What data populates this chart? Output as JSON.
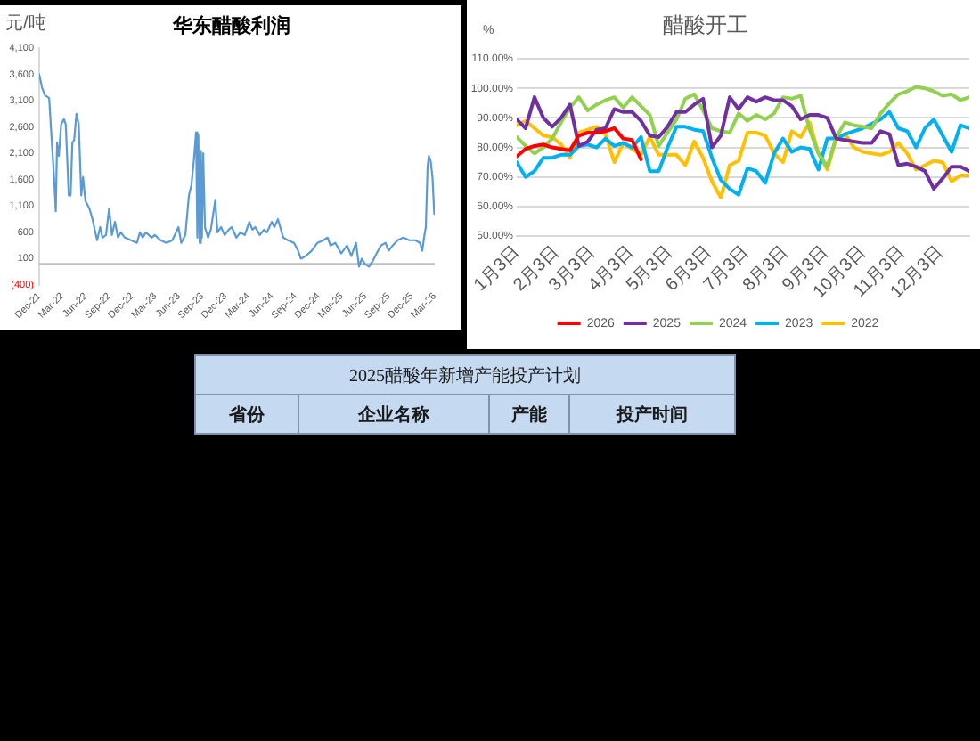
{
  "chart_data": [
    {
      "type": "line",
      "title": "华东醋酸利润",
      "ylabel": "元/吨",
      "color": "#5b9bd5",
      "x": [
        "2021-12-01",
        "2021-12-12",
        "2021-12-24",
        "2022-01-09",
        "2022-01-28",
        "2022-02-04",
        "2022-02-09",
        "2022-02-16",
        "2022-02-25",
        "2022-03-08",
        "2022-03-15",
        "2022-03-27",
        "2022-04-03",
        "2022-04-10",
        "2022-04-17",
        "2022-04-26",
        "2022-05-05",
        "2022-05-15",
        "2022-05-22",
        "2022-05-31",
        "2022-06-16",
        "2022-06-28",
        "2022-07-09",
        "2022-07-16",
        "2022-07-28",
        "2022-08-06",
        "2022-08-20",
        "2022-09-01",
        "2022-09-12",
        "2022-09-24",
        "2022-10-06",
        "2022-10-17",
        "2022-11-02",
        "2022-11-26",
        "2022-12-19",
        "2022-12-31",
        "2023-01-11",
        "2023-01-23",
        "2023-02-15",
        "2023-02-27",
        "2023-03-22",
        "2023-04-14",
        "2023-05-07",
        "2023-05-31",
        "2023-06-11",
        "2023-06-27",
        "2023-07-11",
        "2023-07-21",
        "2023-07-30",
        "2023-08-08",
        "2023-08-13",
        "2023-08-17",
        "2023-08-22",
        "2023-08-27",
        "2023-08-31",
        "2023-09-05",
        "2023-09-12",
        "2023-09-24",
        "2023-10-05",
        "2023-10-22",
        "2023-10-31",
        "2023-11-14",
        "2023-11-28",
        "2023-12-14",
        "2023-12-26",
        "2024-01-13",
        "2024-01-29",
        "2024-02-15",
        "2024-03-04",
        "2024-03-16",
        "2024-03-27",
        "2024-04-14",
        "2024-04-30",
        "2024-05-12",
        "2024-05-31",
        "2024-06-10",
        "2024-06-24",
        "2024-07-03",
        "2024-07-15",
        "2024-08-02",
        "2024-08-26",
        "2024-09-11",
        "2024-09-22",
        "2024-10-11",
        "2024-11-03",
        "2024-11-26",
        "2024-12-19",
        "2025-01-05",
        "2025-01-16",
        "2025-02-04",
        "2025-02-27",
        "2025-03-22",
        "2025-04-08",
        "2025-04-26",
        "2025-05-08",
        "2025-05-19",
        "2025-05-31",
        "2025-06-16",
        "2025-06-30",
        "2025-07-16",
        "2025-08-02",
        "2025-08-20",
        "2025-09-01",
        "2025-09-17",
        "2025-10-06",
        "2025-10-29",
        "2025-11-21",
        "2025-12-15",
        "2026-01-02",
        "2026-01-11",
        "2026-01-18",
        "2026-01-25",
        "2026-02-01",
        "2026-02-06",
        "2026-02-13",
        "2026-02-20",
        "2026-02-27"
      ],
      "values": [
        3600,
        3350,
        3200,
        3150,
        1650,
        1000,
        2300,
        2050,
        2650,
        2750,
        2650,
        1300,
        1300,
        2300,
        2350,
        2850,
        2650,
        1300,
        1650,
        1200,
        1050,
        850,
        600,
        450,
        700,
        500,
        550,
        1050,
        550,
        800,
        500,
        600,
        500,
        450,
        400,
        600,
        500,
        600,
        500,
        550,
        450,
        400,
        450,
        700,
        400,
        550,
        1300,
        1500,
        1950,
        2500,
        500,
        2450,
        400,
        2150,
        500,
        2100,
        700,
        500,
        650,
        1200,
        600,
        700,
        550,
        650,
        700,
        500,
        600,
        550,
        800,
        650,
        700,
        550,
        650,
        600,
        800,
        700,
        850,
        700,
        500,
        450,
        400,
        250,
        100,
        150,
        250,
        400,
        450,
        500,
        350,
        400,
        200,
        350,
        150,
        400,
        -50,
        100,
        0,
        -50,
        50,
        200,
        350,
        400,
        250,
        350,
        450,
        500,
        450,
        450,
        400,
        250,
        500,
        700,
        1850,
        2050,
        1950,
        1650,
        950
      ],
      "xlim": [
        "2021-12",
        "2026-03"
      ],
      "xticks": [
        {
          "value": "2021-12",
          "label": "Dec-21"
        },
        {
          "value": "2022-03",
          "label": "Mar-22"
        },
        {
          "value": "2022-06",
          "label": "Jun-22"
        },
        {
          "value": "2022-09",
          "label": "Sep-22"
        },
        {
          "value": "2022-12",
          "label": "Dec-22"
        },
        {
          "value": "2023-03",
          "label": "Mar-23"
        },
        {
          "value": "2023-06",
          "label": "Jun-23"
        },
        {
          "value": "2023-09",
          "label": "Sep-23"
        },
        {
          "value": "2023-12",
          "label": "Dec-23"
        },
        {
          "value": "2024-03",
          "label": "Mar-24"
        },
        {
          "value": "2024-06",
          "label": "Jun-24"
        },
        {
          "value": "2024-09",
          "label": "Sep-24"
        },
        {
          "value": "2024-12",
          "label": "Dec-24"
        },
        {
          "value": "2025-03",
          "label": "Mar-25"
        },
        {
          "value": "2025-06",
          "label": "Jun-25"
        },
        {
          "value": "2025-09",
          "label": "Sep-25"
        },
        {
          "value": "2025-12",
          "label": "Dec-25"
        },
        {
          "value": "2026-03",
          "label": "Mar-26"
        }
      ],
      "ylim": [
        -400,
        4100
      ],
      "yticks": [
        {
          "value": -400,
          "label": "(400)"
        },
        100,
        600,
        {
          "value": 1100,
          "label": "1,100"
        },
        {
          "value": 1600,
          "label": "1,600"
        },
        {
          "value": 2100,
          "label": "2,100"
        },
        {
          "value": 2600,
          "label": "2,600"
        },
        {
          "value": 3100,
          "label": "3,100"
        },
        {
          "value": 3600,
          "label": "3,600"
        },
        {
          "value": 4100,
          "label": "4,100"
        }
      ],
      "ref_lines": [
        {
          "axis": "y",
          "value": 0,
          "color": "#bfbfbf"
        }
      ]
    },
    {
      "type": "line",
      "title": "醋酸开工",
      "ylabel": "%",
      "grid": "y",
      "legend": "bottom",
      "x": [
        "--01-03",
        "--01-10",
        "--01-17",
        "--01-24",
        "--01-31",
        "--02-07",
        "--02-14",
        "--02-21",
        "--02-28",
        "--03-07",
        "--03-14",
        "--03-21",
        "--03-28",
        "--04-04",
        "--04-11",
        "--04-18",
        "--04-25",
        "--05-02",
        "--05-09",
        "--05-16",
        "--05-23",
        "--05-30",
        "--06-06",
        "--06-13",
        "--06-20",
        "--06-27",
        "--07-04",
        "--07-11",
        "--07-18",
        "--07-25",
        "--08-01",
        "--08-08",
        "--08-15",
        "--08-22",
        "--08-29",
        "--09-05",
        "--09-12",
        "--09-19",
        "--09-26",
        "--10-03",
        "--10-10",
        "--10-17",
        "--10-24",
        "--10-31",
        "--11-07",
        "--11-14",
        "--11-21",
        "--11-28",
        "--12-05",
        "--12-12",
        "--12-19",
        "--12-26"
      ],
      "xlim": [
        "--01-03",
        "--12-26"
      ],
      "xticks": [
        {
          "value": "--01-03",
          "label": "1月3日"
        },
        {
          "value": "--02-03",
          "label": "2月3日"
        },
        {
          "value": "--03-03",
          "label": "3月3日"
        },
        {
          "value": "--04-03",
          "label": "4月3日"
        },
        {
          "value": "--05-03",
          "label": "5月3日"
        },
        {
          "value": "--06-03",
          "label": "6月3日"
        },
        {
          "value": "--07-03",
          "label": "7月3日"
        },
        {
          "value": "--08-03",
          "label": "8月3日"
        },
        {
          "value": "--09-03",
          "label": "9月3日"
        },
        {
          "value": "--10-03",
          "label": "10月3日"
        },
        {
          "value": "--11-03",
          "label": "11月3日"
        },
        {
          "value": "--12-03",
          "label": "12月3日"
        }
      ],
      "ylim": [
        50,
        110
      ],
      "yticks": [
        {
          "value": 50,
          "label": "50.00%"
        },
        {
          "value": 60,
          "label": "60.00%"
        },
        {
          "value": 70,
          "label": "70.00%"
        },
        {
          "value": 80,
          "label": "80.00%"
        },
        {
          "value": 90,
          "label": "90.00%"
        },
        {
          "value": 100,
          "label": "100.00%"
        },
        {
          "value": 110,
          "label": "110.00%"
        }
      ],
      "series": [
        {
          "name": "2026",
          "color": "#ff0000",
          "x": [
            "--01-03",
            "--01-10",
            "--01-17",
            "--01-24",
            "--01-31",
            "--02-07",
            "--02-14",
            "--02-21",
            "--02-28",
            "--03-07",
            "--03-14",
            "--03-21",
            "--03-28",
            "--04-04",
            "--04-11"
          ],
          "values": [
            77,
            79.5,
            80.5,
            81,
            80,
            79.5,
            79,
            84,
            85,
            85,
            85.5,
            86.5,
            83,
            82.5,
            76
          ]
        },
        {
          "name": "2025",
          "color": "#7030a0",
          "values": [
            89.5,
            86.5,
            97,
            90,
            87,
            90,
            94.5,
            80.5,
            82,
            86,
            86.5,
            93,
            92,
            92,
            89,
            84,
            83.5,
            87,
            92,
            92,
            94.5,
            96.5,
            80,
            84,
            97,
            93,
            97,
            95.5,
            97,
            96,
            96,
            94,
            89.5,
            91,
            91,
            90,
            83,
            82.5,
            82,
            81.5,
            81.5,
            85.5,
            84.5,
            74,
            74.5,
            73.5,
            72,
            66,
            69.5,
            73.5,
            73.5,
            72
          ]
        },
        {
          "name": "2024",
          "color": "#92d050",
          "values": [
            83.5,
            80.5,
            78,
            80,
            83,
            88.5,
            93.5,
            97,
            92.5,
            94.5,
            96,
            97,
            93.5,
            97,
            94,
            91,
            80.5,
            85,
            89.5,
            96.5,
            98,
            92.5,
            86.5,
            85.5,
            85,
            91.5,
            89,
            91,
            89.5,
            91.5,
            97,
            96.5,
            97.5,
            86,
            78,
            73.5,
            83.5,
            88.5,
            87.5,
            87,
            86.5,
            91.5,
            95,
            98,
            99,
            100.5,
            100,
            99,
            97.5,
            98,
            96,
            97
          ]
        },
        {
          "name": "2023",
          "color": "#00b0f0",
          "values": [
            75,
            70,
            72,
            76.5,
            76.5,
            77.5,
            77.5,
            80.5,
            81,
            80,
            83,
            80.5,
            81.5,
            80,
            83.5,
            72,
            72,
            80,
            87,
            87,
            86,
            85.5,
            76.5,
            69,
            66,
            64,
            73,
            72,
            68,
            78,
            83,
            78.5,
            80,
            79.5,
            72.5,
            83,
            83,
            84.5,
            85.5,
            86.5,
            88,
            89.5,
            92,
            86.5,
            85.5,
            80,
            86.5,
            89.5,
            84,
            78.5,
            87.5,
            86.5
          ]
        },
        {
          "name": "2022",
          "color": "#ffc000",
          "values": [
            87.5,
            89,
            86.5,
            84,
            83.5,
            81,
            76.5,
            85,
            86,
            87,
            84.5,
            75,
            81.5,
            79.5,
            77.5,
            83.5,
            77.5,
            77.5,
            77.5,
            74,
            82,
            76.5,
            68.5,
            63,
            74,
            75.5,
            85,
            85,
            84,
            78,
            75,
            85.5,
            83.5,
            88.5,
            78,
            72.5,
            83,
            84.5,
            80,
            78.5,
            78,
            77.5,
            78.5,
            81.5,
            78,
            72.5,
            74,
            75.5,
            75,
            68.5,
            70.5,
            70.5
          ]
        }
      ]
    },
    {
      "type": "other",
      "title": "2025醋酸年新增产能投产计划",
      "categories": [
        "省份",
        "企业名称",
        "产能",
        "投产时间"
      ]
    }
  ]
}
